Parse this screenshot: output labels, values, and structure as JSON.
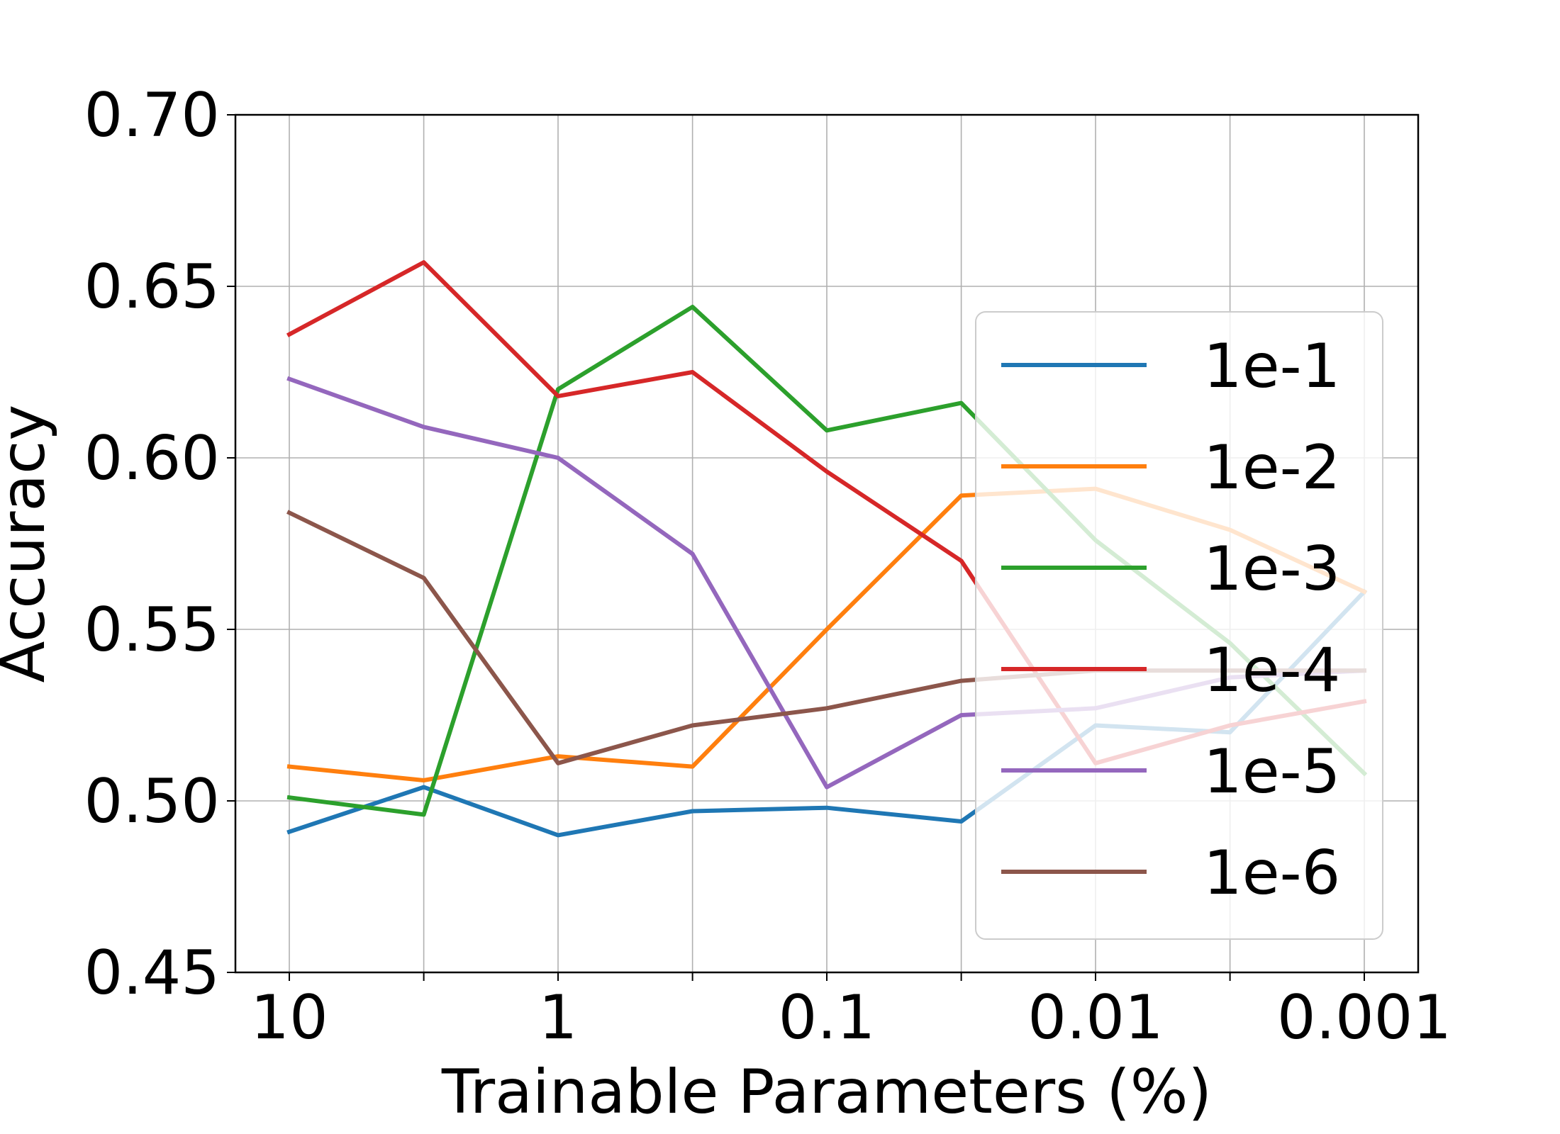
{
  "chart_data": {
    "type": "line",
    "title": "",
    "xlabel": "Trainable Parameters (%)",
    "ylabel": "Accuracy",
    "x_positions": [
      10,
      3.16,
      1,
      0.316,
      0.1,
      0.0316,
      0.01,
      0.00316,
      0.001
    ],
    "xticks": [
      {
        "label": "10",
        "value": 10
      },
      {
        "label": "1",
        "value": 1
      },
      {
        "label": "0.1",
        "value": 0.1
      },
      {
        "label": "0.01",
        "value": 0.01
      },
      {
        "label": "0.001",
        "value": 0.001
      }
    ],
    "xscale": "log",
    "xaxis_direction": "decreasing",
    "ylim": [
      0.45,
      0.7
    ],
    "yticks": [
      "0.45",
      "0.50",
      "0.55",
      "0.60",
      "0.65",
      "0.70"
    ],
    "grid": true,
    "legend_position": "right",
    "series": [
      {
        "name": "1e-1",
        "color": "#1f77b4",
        "values": [
          0.491,
          0.504,
          0.49,
          0.497,
          0.498,
          0.494,
          0.522,
          0.52,
          0.561
        ]
      },
      {
        "name": "1e-2",
        "color": "#ff7f0e",
        "values": [
          0.51,
          0.506,
          0.513,
          0.51,
          0.55,
          0.589,
          0.591,
          0.579,
          0.561
        ]
      },
      {
        "name": "1e-3",
        "color": "#2ca02c",
        "values": [
          0.501,
          0.496,
          0.62,
          0.644,
          0.608,
          0.616,
          0.576,
          0.546,
          0.508
        ]
      },
      {
        "name": "1e-4",
        "color": "#d62728",
        "values": [
          0.636,
          0.657,
          0.618,
          0.625,
          0.596,
          0.57,
          0.511,
          0.522,
          0.529
        ]
      },
      {
        "name": "1e-5",
        "color": "#9467bd",
        "values": [
          0.623,
          0.609,
          0.6,
          0.572,
          0.504,
          0.525,
          0.527,
          0.536,
          0.538
        ]
      },
      {
        "name": "1e-6",
        "color": "#8c564b",
        "values": [
          0.584,
          0.565,
          0.511,
          0.522,
          0.527,
          0.535,
          0.538,
          0.538,
          0.538
        ]
      }
    ]
  }
}
